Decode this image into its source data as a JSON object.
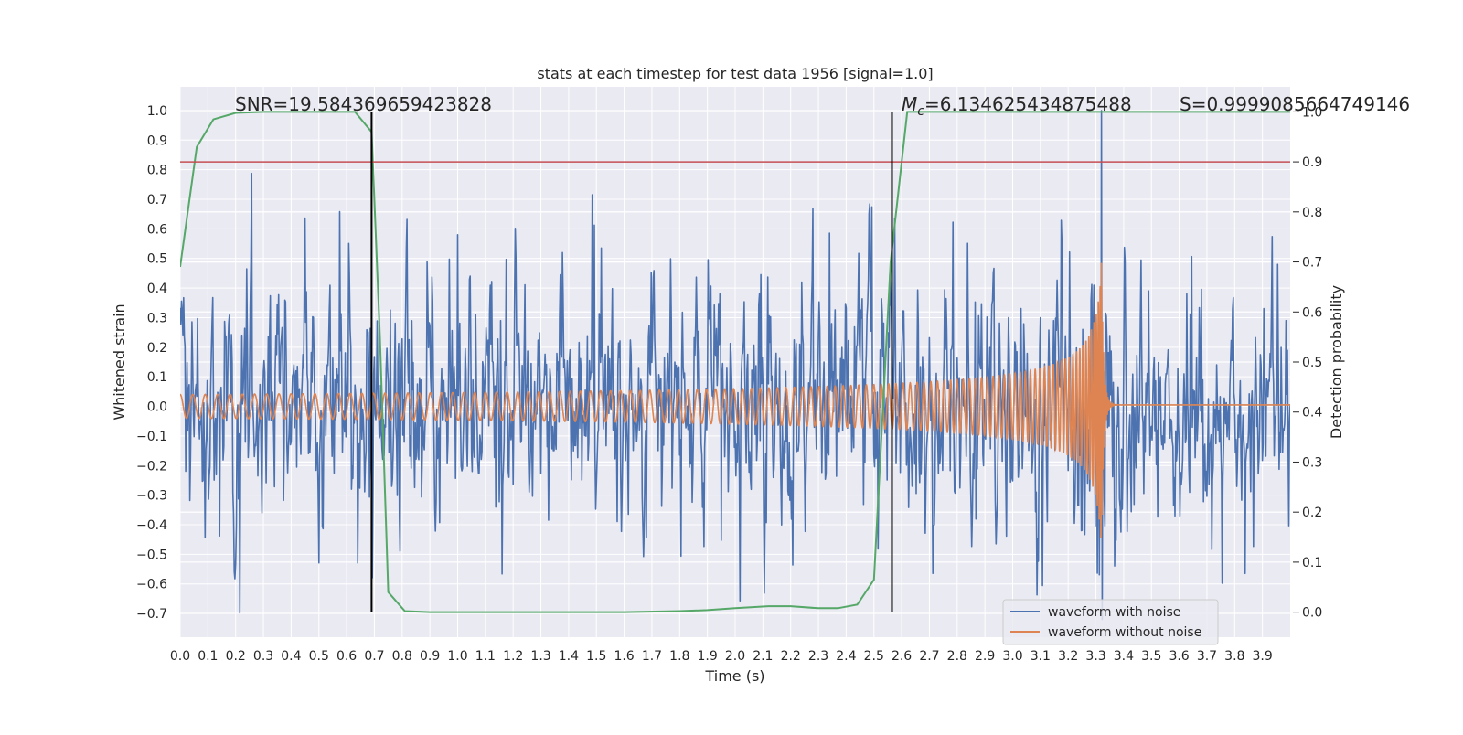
{
  "chart_data": {
    "type": "line",
    "title": "stats at each timestep for test data 1956 [signal=1.0]",
    "xlabel": "Time (s)",
    "ylabel": "Whitened strain",
    "y2label": "Detection probability",
    "xlim": [
      0.0,
      4.0
    ],
    "ylim": [
      -0.78,
      1.08
    ],
    "y2lim": [
      -0.05,
      1.05
    ],
    "x_ticks": [
      0.0,
      0.1,
      0.2,
      0.3,
      0.4,
      0.5,
      0.6,
      0.7,
      0.8,
      0.9,
      1.0,
      1.1,
      1.2,
      1.3,
      1.4,
      1.5,
      1.6,
      1.7,
      1.8,
      1.9,
      2.0,
      2.1,
      2.2,
      2.3,
      2.4,
      2.5,
      2.6,
      2.7,
      2.8,
      2.9,
      3.0,
      3.1,
      3.2,
      3.3,
      3.4,
      3.5,
      3.6,
      3.7,
      3.8,
      3.9
    ],
    "x_tick_labels": [
      "0.0",
      "0.1",
      "0.2",
      "0.3",
      "0.4",
      "0.5",
      "0.6",
      "0.7",
      "0.8",
      "0.9",
      "1.0",
      "1.1",
      "1.2",
      "1.3",
      "1.4",
      "1.5",
      "1.6",
      "1.7",
      "1.8",
      "1.9",
      "2.0",
      "2.1",
      "2.2",
      "2.3",
      "2.4",
      "2.5",
      "2.6",
      "2.7",
      "2.8",
      "2.9",
      "3.0",
      "3.1",
      "3.2",
      "3.3",
      "3.4",
      "3.5",
      "3.6",
      "3.7",
      "3.8",
      "3.9"
    ],
    "y_ticks": [
      1.0,
      0.9,
      0.8,
      0.7,
      0.6,
      0.5,
      0.4,
      0.3,
      0.2,
      0.1,
      0.0,
      -0.1,
      -0.2,
      -0.3,
      -0.4,
      -0.5,
      -0.6,
      -0.7
    ],
    "y_tick_labels": [
      "1.0",
      "0.9",
      "0.8",
      "0.7",
      "0.6",
      "0.5",
      "0.4",
      "0.3",
      "0.2",
      "0.1",
      "0.0",
      "−0.1",
      "−0.2",
      "−0.3",
      "−0.4",
      "−0.5",
      "−0.6",
      "−0.7"
    ],
    "y2_ticks": [
      1.0,
      0.9,
      0.8,
      0.7,
      0.6,
      0.5,
      0.4,
      0.3,
      0.2,
      0.1,
      0.0
    ],
    "y2_tick_labels": [
      "1.0",
      "0.9",
      "0.8",
      "0.7",
      "0.6",
      "0.5",
      "0.4",
      "0.3",
      "0.2",
      "0.1",
      "0.0"
    ],
    "grid": true,
    "series": [
      {
        "name": "waveform with noise",
        "color": "#4c72b0",
        "axis": "left",
        "description": "dense noisy strain, amplitude mostly within about ±0.45 with peaks to 0.65, spike at t=3.32 reaching 1.0",
        "noise_scale": 0.16,
        "spike": {
          "t": 3.32,
          "peak": 1.0,
          "trough": -0.72
        }
      },
      {
        "name": "waveform without noise",
        "color": "#dd8452",
        "axis": "left",
        "description": "chirp: amplitude ~0.04 at start growing to ~0.48 at merger t=3.32, then ringdown to ~0.005",
        "t_merger": 3.32,
        "amplitude_start": 0.04,
        "amplitude_peak": 0.48,
        "frequency_start_hz": 22,
        "post_merger_level": 0.005
      },
      {
        "name": "detection probability",
        "color": "#55a868",
        "axis": "right",
        "x": [
          0.0,
          0.06,
          0.12,
          0.2,
          0.3,
          0.4,
          0.5,
          0.6,
          0.63,
          0.69,
          0.72,
          0.75,
          0.81,
          0.9,
          1.0,
          1.2,
          1.4,
          1.6,
          1.8,
          1.9,
          2.0,
          2.12,
          2.2,
          2.3,
          2.37,
          2.44,
          2.5,
          2.56,
          2.62,
          2.7,
          2.8,
          3.0,
          3.2,
          3.4,
          3.6,
          3.8,
          4.0
        ],
        "y": [
          0.69,
          0.93,
          0.985,
          0.998,
          1.0,
          1.0,
          1.0,
          1.0,
          1.0,
          0.96,
          0.55,
          0.04,
          0.002,
          0.0,
          0.0,
          0.0,
          0.0,
          0.0,
          0.002,
          0.004,
          0.008,
          0.012,
          0.012,
          0.008,
          0.008,
          0.015,
          0.065,
          0.7,
          1.0,
          1.0,
          1.0,
          1.0,
          1.0,
          1.0,
          1.0,
          1.0,
          1.0
        ]
      }
    ],
    "threshold_line": {
      "y2": 0.9,
      "color": "#c44e52"
    },
    "vertical_lines": [
      0.69,
      2.565
    ],
    "annotations": {
      "snr": "SNR=19.584369659423828",
      "mc_symbol": "M",
      "mc_subscript": "c",
      "mc_value": "=6.134625434875488",
      "s": "S=0.9999085664749146"
    },
    "legend_position": "lower-right"
  }
}
